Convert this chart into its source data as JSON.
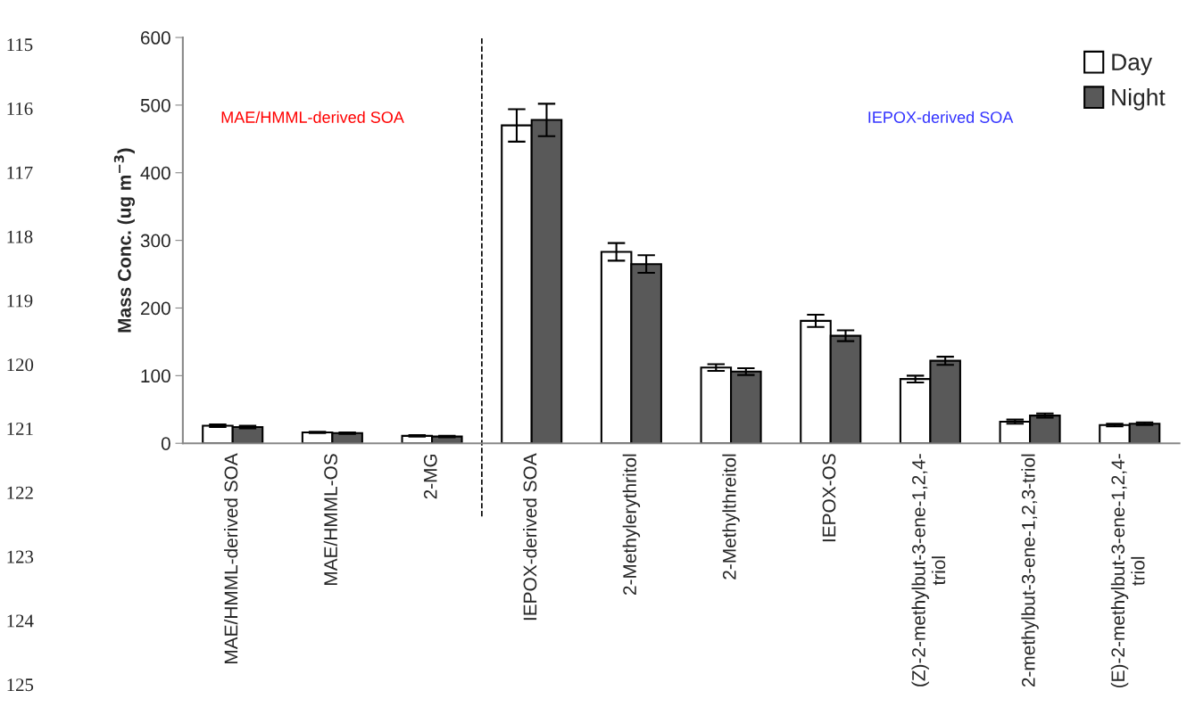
{
  "chart_data": {
    "type": "bar",
    "ylabel": "Mass Conc. (ug m$^{−3}$)",
    "categories": [
      "MAE/HMML-derived SOA",
      "MAE/HMML-OS",
      "2-MG",
      "IEPOX-derived SOA",
      "2-Methylerythritol",
      "2-Methylthreitol",
      "IEPOX-OS",
      "(Z)-2-methylbut-3-ene-1,2,4-\ntriol",
      "2-methylbut-3-ene-1,2,3-triol",
      "(E)-2-methylbut-3-ene-1,2,4-\ntriol"
    ],
    "series": [
      {
        "name": "Day",
        "color": "#ffffff",
        "values": [
          26,
          16,
          11,
          470,
          283,
          112,
          181,
          95,
          32,
          27
        ],
        "errors": [
          2,
          1,
          1,
          24,
          13,
          5,
          9,
          5,
          3,
          2
        ]
      },
      {
        "name": "Night",
        "color": "#595959",
        "values": [
          24,
          15,
          10,
          478,
          265,
          106,
          159,
          122,
          41,
          29
        ],
        "errors": [
          2,
          1,
          1,
          24,
          13,
          5,
          8,
          6,
          3,
          2
        ]
      }
    ],
    "ylim": [
      0,
      600
    ],
    "yticks": [
      0,
      100,
      200,
      300,
      400,
      500,
      600
    ],
    "annotations": [
      "MAE/HMML-derived SOA",
      "IEPOX-derived SOA",
      "115",
      "116",
      "117",
      "118",
      "119",
      "120",
      "121",
      "122",
      "123",
      "124",
      "125"
    ],
    "legend": "top right",
    "grid": false
  }
}
